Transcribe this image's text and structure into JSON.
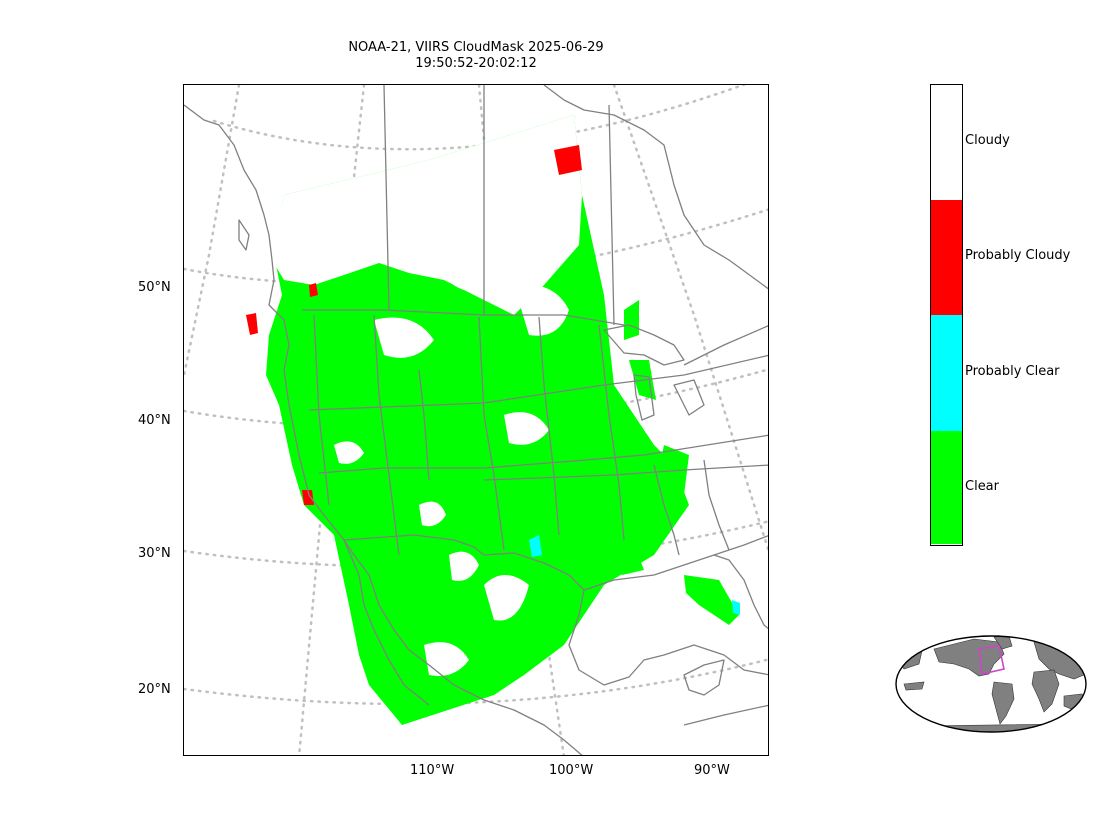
{
  "title_line1": "NOAA-21, VIIRS CloudMask 2025-06-29",
  "title_line2": "19:50:52-20:02:12",
  "lat_labels": [
    "50°N",
    "40°N",
    "30°N",
    "20°N"
  ],
  "lon_labels": [
    "110°W",
    "100°W",
    "90°W"
  ],
  "legend": {
    "categories": [
      {
        "label": "Cloudy",
        "color": "#ffffff"
      },
      {
        "label": "Probably Cloudy",
        "color": "#ff0000"
      },
      {
        "label": "Probably Clear",
        "color": "#00ffff"
      },
      {
        "label": "Clear",
        "color": "#00ff00"
      }
    ]
  },
  "colors": {
    "coastline": "#808080",
    "graticule": "#c0c0c0",
    "overview_land": "#808080",
    "overview_box": "#cc44cc"
  }
}
